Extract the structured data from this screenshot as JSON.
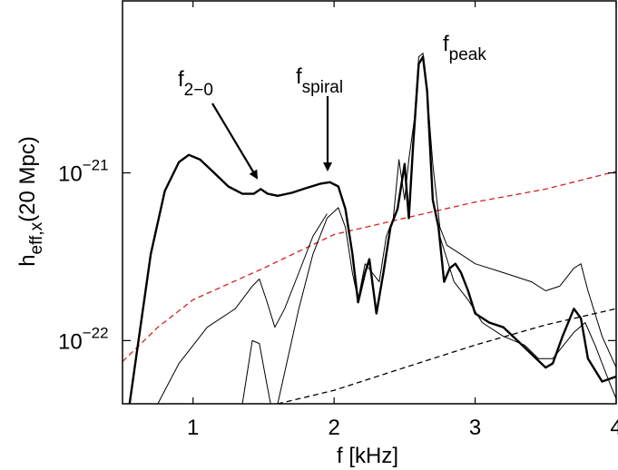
{
  "chart_data": {
    "type": "line",
    "xlabel": "f [kHz]",
    "ylabel": {
      "main": "h",
      "subscript": "eff,x",
      "rest": "(20 Mpc)"
    },
    "annotations": [
      {
        "main": "f",
        "subscript": "2−0"
      },
      {
        "main": "f",
        "subscript": "spiral"
      },
      {
        "main": "f",
        "subscript": "peak"
      }
    ],
    "xlim": [
      0.5,
      4
    ],
    "xticks": [
      1,
      2,
      3,
      4
    ],
    "ylim": [
      4.2e-23,
      1.06e-20
    ],
    "yscale": "log",
    "yticks": [
      {
        "value": 1e-22,
        "label": "10",
        "exponent": "−22"
      },
      {
        "value": 1e-21,
        "label": "10",
        "exponent": "−21"
      }
    ],
    "series": [
      {
        "color": "#d42020",
        "linewidth": 1.3,
        "linestyle": "dashed",
        "x": [
          0.5,
          0.75,
          1.0,
          1.5,
          2.0,
          2.5,
          3.0,
          3.5,
          4.0
        ],
        "values": [
          7.5e-23,
          1.2e-22,
          1.75e-22,
          2.7e-22,
          4.29e-22,
          5.37e-22,
          6.7e-22,
          8e-22,
          1.02e-21
        ]
      },
      {
        "color": "#000000",
        "linewidth": 1.3,
        "linestyle": "dashed",
        "x": [
          1.6,
          1.75,
          2.0,
          2.5,
          3.0,
          3.5,
          4.0
        ],
        "values": [
          4.2e-23,
          4.5e-23,
          5.05e-23,
          6.9e-23,
          9.4e-23,
          1.24e-22,
          1.55e-22
        ]
      },
      {
        "color": "#000000",
        "linewidth": 1,
        "linestyle": "solid",
        "x": [
          0.75,
          0.9,
          1.1,
          1.3,
          1.42,
          1.47,
          1.52,
          1.58,
          1.65,
          1.75,
          1.85,
          1.95
        ],
        "values": [
          4.2e-23,
          7.3e-23,
          1.2e-22,
          1.55e-22,
          2.11e-22,
          2.33e-22,
          1.75e-22,
          1.2e-22,
          1.55e-22,
          2.54e-22,
          4.18e-22,
          5.7e-22
        ]
      },
      {
        "color": "#000000",
        "linewidth": 1,
        "linestyle": "solid",
        "x": [
          1.35,
          1.42,
          1.47,
          1.52,
          1.55
        ],
        "values": [
          4.2e-23,
          1e-22,
          9.6e-23,
          5.7e-23,
          4.2e-23
        ]
      },
      {
        "color": "#000000",
        "linewidth": 1,
        "linestyle": "solid",
        "x": [
          1.6,
          1.75,
          1.85,
          1.95,
          2.03,
          2.08,
          2.13,
          2.17,
          2.22,
          2.27,
          2.32,
          2.37,
          2.42,
          2.46,
          2.5,
          2.53,
          2.57,
          2.6,
          2.63,
          2.66,
          2.7,
          2.75,
          2.8,
          2.9,
          3.0,
          3.2,
          3.4,
          3.5,
          3.6,
          3.7,
          3.75,
          3.8,
          3.9,
          4.0
        ],
        "values": [
          4.2e-23,
          1.55e-22,
          3.27e-22,
          5.37e-22,
          6.2e-22,
          4.74e-22,
          2.54e-22,
          1.75e-22,
          2.87e-22,
          2.54e-22,
          2.24e-22,
          4.18e-22,
          5.37e-22,
          1.2e-21,
          6.9e-22,
          1.2e-21,
          2.11e-21,
          4.92e-21,
          5.17e-21,
          3.06e-21,
          1.13e-21,
          4.74e-22,
          3.7e-22,
          3.27e-22,
          2.87e-22,
          2.54e-22,
          2.24e-22,
          1.98e-22,
          2.11e-22,
          2.7e-22,
          2.87e-22,
          1.98e-22,
          1.06e-22,
          6.9e-23
        ]
      },
      {
        "color": "#000000",
        "linewidth": 1,
        "linestyle": "solid",
        "x": [
          2.75,
          2.85,
          2.95,
          3.05,
          3.2,
          3.35,
          3.45,
          3.55,
          3.7,
          3.78,
          3.85,
          3.95,
          4.0
        ],
        "values": [
          4.18e-22,
          2.24e-22,
          1.75e-22,
          1.28e-22,
          1.06e-22,
          9.4e-23,
          7.8e-23,
          7.8e-23,
          1.12e-22,
          1.28e-22,
          9.4e-23,
          5.7e-23,
          4.5e-23
        ]
      },
      {
        "color": "#000000",
        "linewidth": 2.4,
        "linestyle": "solid",
        "x": [
          0.55,
          0.6,
          0.7,
          0.8,
          0.9,
          0.97,
          1.05,
          1.15,
          1.25,
          1.35,
          1.43,
          1.48,
          1.53,
          1.6,
          1.7,
          1.8,
          1.9,
          1.97,
          2.03,
          2.08,
          2.13,
          2.17,
          2.22,
          2.25,
          2.3,
          2.35,
          2.4,
          2.45,
          2.5,
          2.53,
          2.56,
          2.6,
          2.63,
          2.66,
          2.7,
          2.74,
          2.78,
          2.82,
          2.86,
          2.9,
          2.95,
          3.0,
          3.1,
          3.2,
          3.3,
          3.4,
          3.5,
          3.55,
          3.62,
          3.7,
          3.75,
          3.8,
          3.9,
          4.0
        ],
        "values": [
          4.2e-23,
          8.3e-23,
          3.27e-22,
          7.8e-22,
          1.16e-21,
          1.28e-21,
          1.2e-21,
          1e-21,
          8.3e-22,
          7.5e-22,
          7.5e-22,
          8e-22,
          7.5e-22,
          7.3e-22,
          7.6e-22,
          8.1e-22,
          8.6e-22,
          8.8e-22,
          8.3e-22,
          6.1e-22,
          3.3e-22,
          1.69e-22,
          2.54e-22,
          3.06e-22,
          1.45e-22,
          2.54e-22,
          4.74e-22,
          6.1e-22,
          1.13e-21,
          5.37e-22,
          1.45e-21,
          4.46e-21,
          4.92e-21,
          3.06e-21,
          6.9e-22,
          4.74e-22,
          2.24e-22,
          2.7e-22,
          2.87e-22,
          2.54e-22,
          1.98e-22,
          1.45e-22,
          1.28e-22,
          1.2e-22,
          1e-22,
          8.3e-23,
          6.9e-23,
          7.3e-23,
          1.06e-22,
          1.55e-22,
          1.36e-22,
          7.8e-23,
          5.7e-23,
          6.1e-23
        ]
      }
    ]
  }
}
